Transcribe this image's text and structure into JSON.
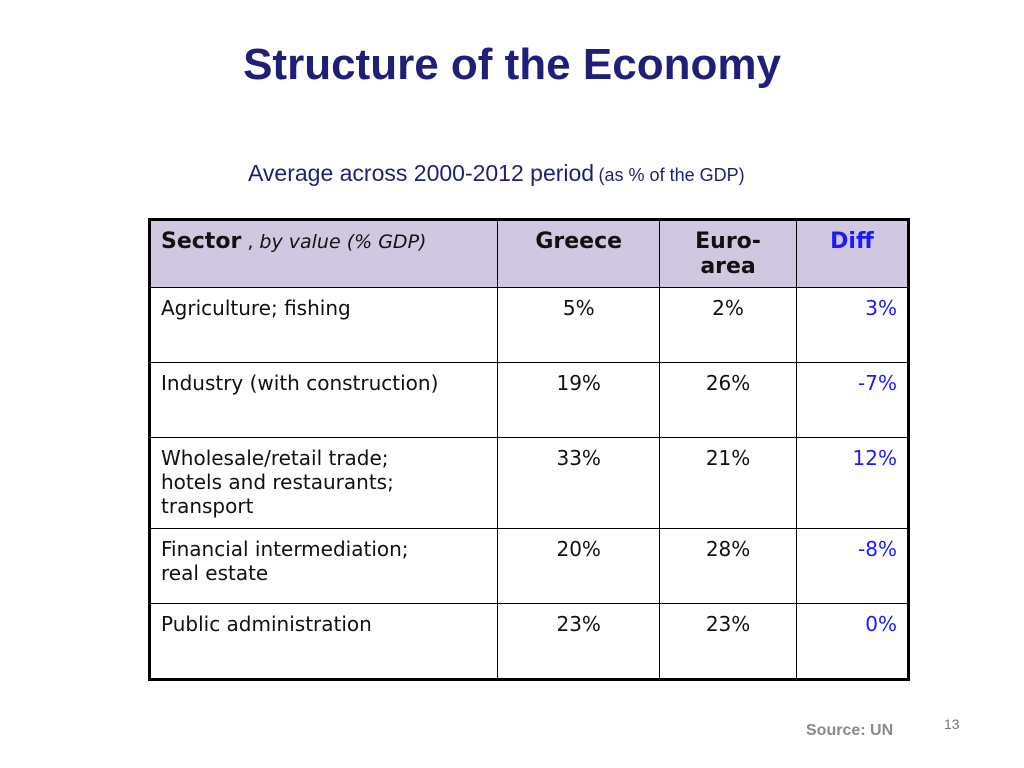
{
  "slide": {
    "title": "Structure of the Economy",
    "subtitle_main": "Average across 2000-2012 period",
    "subtitle_paren": "(as % of the GDP)",
    "source": "Source: UN",
    "page_number": "13"
  },
  "table": {
    "headers": {
      "sector": "Sector",
      "sector_sep": " , ",
      "sector_sub": "by value (% GDP)",
      "greece": "Greece",
      "euro_line1": "Euro-",
      "euro_line2": "area",
      "diff": "Diff"
    },
    "rows": [
      {
        "sector_lines": [
          "Agriculture; fishing"
        ],
        "greece": "5%",
        "euro": "2%",
        "diff": "3%"
      },
      {
        "sector_lines": [
          "Industry (with construction)"
        ],
        "greece": "19%",
        "euro": "26%",
        "diff": "-7%"
      },
      {
        "sector_lines": [
          "Wholesale/retail trade;",
          "hotels and restaurants;",
          "transport"
        ],
        "greece": "33%",
        "euro": "21%",
        "diff": "12%"
      },
      {
        "sector_lines": [
          "Financial intermediation;",
          "real estate"
        ],
        "greece": "20%",
        "euro": "28%",
        "diff": "-8%"
      },
      {
        "sector_lines": [
          "Public administration"
        ],
        "greece": "23%",
        "euro": "23%",
        "diff": "0%"
      }
    ]
  },
  "colors": {
    "title": "#1f1f7a",
    "header_bg": "#cfc8e0",
    "diff_text": "#1a1aff",
    "source_text": "#8a8a8a"
  }
}
